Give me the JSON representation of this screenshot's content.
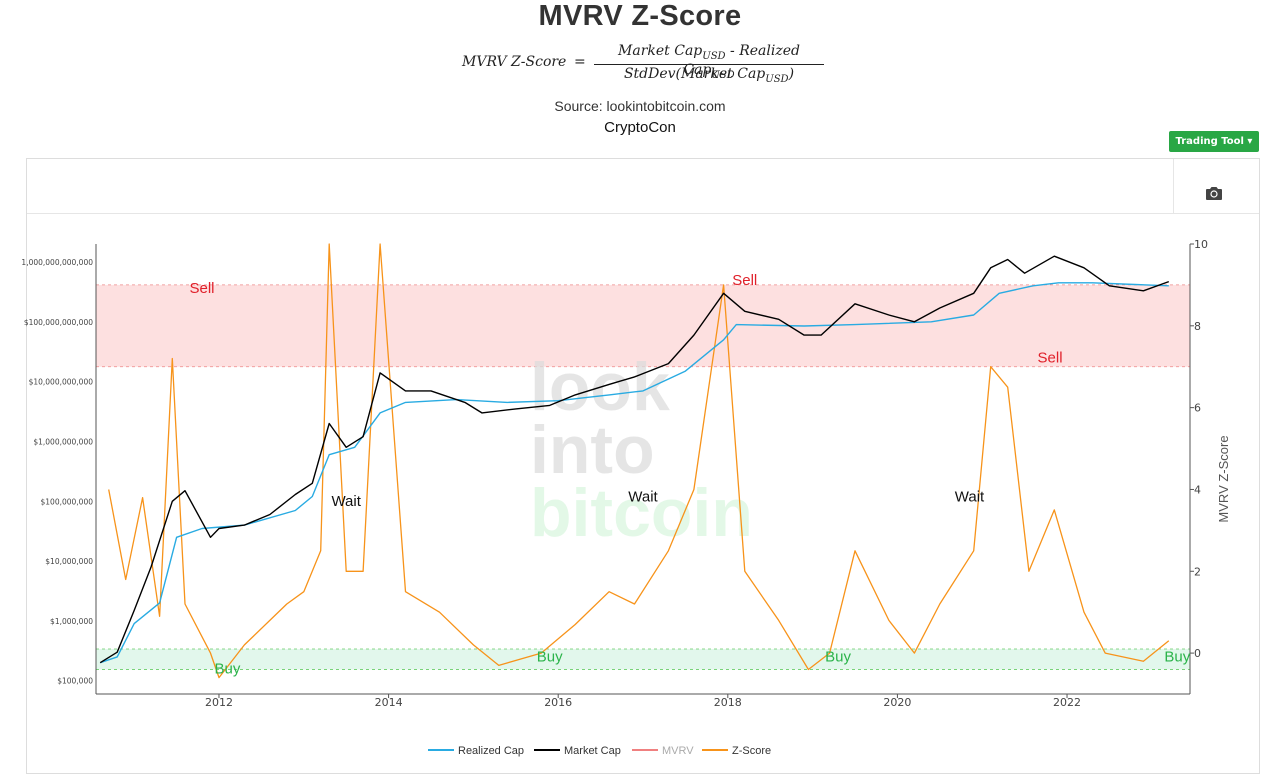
{
  "title": "MVRV Z-Score",
  "formula": {
    "lhs": "MVRV Z-Score",
    "equals": "=",
    "numerator_a": "Market Cap",
    "numerator_op": " - ",
    "numerator_b": "Realized Cap",
    "denominator_a": "StdDev(Market Cap",
    "denominator_close": ")",
    "subscript": "USD"
  },
  "source": "Source: lookintobitcoin.com",
  "author": "CryptoCon",
  "toolbar": {
    "trading_tool_label": "Trading Tool ▾",
    "camera_icon": "camera-icon"
  },
  "watermark": [
    "look",
    "into",
    "bitcoin"
  ],
  "colors": {
    "realized_cap": "#29abe2",
    "market_cap": "#000000",
    "mvrv": "#f08080",
    "zscore": "#f7931a",
    "sell_zone": "#fde0e0",
    "buy_zone": "#e2f7ec",
    "sell_text": "#e0202a",
    "buy_text": "#2bb34a",
    "button_bg": "#29a745"
  },
  "chart_data": {
    "type": "line",
    "title": "MVRV Z-Score",
    "xlabel": "",
    "ylabel_left": "",
    "ylabel_right": "MVRV Z-Score",
    "x_ticks": [
      "2012",
      "2014",
      "2016",
      "2018",
      "2020",
      "2022"
    ],
    "left_axis": {
      "scale": "log",
      "range": [
        60000,
        2000000000000
      ],
      "ticks": [
        {
          "value": 100000,
          "label": "$100,000"
        },
        {
          "value": 1000000,
          "label": "$1,000,000"
        },
        {
          "value": 10000000,
          "label": "$10,000,000"
        },
        {
          "value": 100000000,
          "label": "$100,000,000"
        },
        {
          "value": 1000000000,
          "label": "$1,000,000,000"
        },
        {
          "value": 10000000000,
          "label": "$10,000,000,000"
        },
        {
          "value": 100000000000,
          "label": "$100,000,000,000"
        },
        {
          "value": 1000000000000,
          "label": "1,000,000,000,000"
        }
      ]
    },
    "right_axis": {
      "scale": "linear",
      "range": [
        -1,
        10
      ],
      "ticks": [
        {
          "value": 0,
          "label": "0"
        },
        {
          "value": 2,
          "label": "2"
        },
        {
          "value": 4,
          "label": "4"
        },
        {
          "value": 6,
          "label": "6"
        },
        {
          "value": 8,
          "label": "8"
        },
        {
          "value": 10,
          "label": "10"
        }
      ]
    },
    "zones": [
      {
        "name": "sell",
        "zscore_from": 7,
        "zscore_to": 9
      },
      {
        "name": "buy",
        "zscore_from": -0.4,
        "zscore_to": 0.1
      }
    ],
    "legend_position": "bottom-center",
    "legend": [
      "Realized Cap",
      "Market Cap",
      "MVRV",
      "Z-Score"
    ],
    "series": [
      {
        "name": "Market Cap",
        "axis": "left",
        "points": [
          [
            2010.6,
            200000
          ],
          [
            2010.8,
            300000
          ],
          [
            2011.0,
            1500000
          ],
          [
            2011.2,
            8000000
          ],
          [
            2011.45,
            100000000
          ],
          [
            2011.6,
            150000000
          ],
          [
            2011.9,
            25000000
          ],
          [
            2012.0,
            35000000
          ],
          [
            2012.3,
            40000000
          ],
          [
            2012.6,
            60000000
          ],
          [
            2012.9,
            130000000
          ],
          [
            2013.1,
            200000000
          ],
          [
            2013.3,
            2000000000
          ],
          [
            2013.5,
            800000000
          ],
          [
            2013.7,
            1200000000
          ],
          [
            2013.9,
            14000000000
          ],
          [
            2014.2,
            7000000000
          ],
          [
            2014.5,
            7000000000
          ],
          [
            2014.9,
            4500000000
          ],
          [
            2015.1,
            3000000000
          ],
          [
            2015.5,
            3500000000
          ],
          [
            2015.9,
            4000000000
          ],
          [
            2016.2,
            6000000000
          ],
          [
            2016.6,
            9000000000
          ],
          [
            2016.9,
            12000000000
          ],
          [
            2017.3,
            20000000000
          ],
          [
            2017.6,
            60000000000
          ],
          [
            2017.95,
            300000000000
          ],
          [
            2018.2,
            150000000000
          ],
          [
            2018.6,
            110000000000
          ],
          [
            2018.9,
            60000000000
          ],
          [
            2019.1,
            60000000000
          ],
          [
            2019.5,
            200000000000
          ],
          [
            2019.9,
            130000000000
          ],
          [
            2020.2,
            100000000000
          ],
          [
            2020.5,
            170000000000
          ],
          [
            2020.9,
            300000000000
          ],
          [
            2021.1,
            800000000000
          ],
          [
            2021.3,
            1100000000000
          ],
          [
            2021.5,
            650000000000
          ],
          [
            2021.85,
            1250000000000
          ],
          [
            2022.2,
            800000000000
          ],
          [
            2022.5,
            400000000000
          ],
          [
            2022.9,
            330000000000
          ],
          [
            2023.2,
            470000000000
          ]
        ]
      },
      {
        "name": "Realized Cap",
        "axis": "left",
        "points": [
          [
            2010.6,
            200000
          ],
          [
            2010.8,
            250000
          ],
          [
            2011.0,
            900000
          ],
          [
            2011.3,
            2000000
          ],
          [
            2011.5,
            25000000
          ],
          [
            2011.8,
            35000000
          ],
          [
            2012.3,
            40000000
          ],
          [
            2012.9,
            70000000
          ],
          [
            2013.1,
            120000000
          ],
          [
            2013.3,
            600000000
          ],
          [
            2013.6,
            800000000
          ],
          [
            2013.9,
            3000000000
          ],
          [
            2014.2,
            4500000000
          ],
          [
            2014.8,
            5000000000
          ],
          [
            2015.4,
            4500000000
          ],
          [
            2016.0,
            4800000000
          ],
          [
            2016.6,
            6000000000
          ],
          [
            2017.0,
            7000000000
          ],
          [
            2017.5,
            15000000000
          ],
          [
            2017.95,
            50000000000
          ],
          [
            2018.1,
            90000000000
          ],
          [
            2018.9,
            85000000000
          ],
          [
            2019.5,
            90000000000
          ],
          [
            2020.4,
            100000000000
          ],
          [
            2020.9,
            130000000000
          ],
          [
            2021.2,
            300000000000
          ],
          [
            2021.6,
            400000000000
          ],
          [
            2021.9,
            450000000000
          ],
          [
            2022.3,
            450000000000
          ],
          [
            2022.8,
            420000000000
          ],
          [
            2023.2,
            400000000000
          ]
        ]
      },
      {
        "name": "Z-Score",
        "axis": "right",
        "points": [
          [
            2010.7,
            4.0
          ],
          [
            2010.9,
            1.8
          ],
          [
            2011.1,
            3.8
          ],
          [
            2011.3,
            0.9
          ],
          [
            2011.45,
            7.2
          ],
          [
            2011.6,
            1.2
          ],
          [
            2011.9,
            0.0
          ],
          [
            2012.0,
            -0.6
          ],
          [
            2012.3,
            0.2
          ],
          [
            2012.8,
            1.2
          ],
          [
            2013.0,
            1.5
          ],
          [
            2013.2,
            2.5
          ],
          [
            2013.3,
            10.0
          ],
          [
            2013.5,
            2.0
          ],
          [
            2013.7,
            2.0
          ],
          [
            2013.9,
            10.0
          ],
          [
            2014.2,
            1.5
          ],
          [
            2014.6,
            1.0
          ],
          [
            2015.0,
            0.2
          ],
          [
            2015.3,
            -0.3
          ],
          [
            2015.8,
            0.0
          ],
          [
            2016.2,
            0.7
          ],
          [
            2016.6,
            1.5
          ],
          [
            2016.9,
            1.2
          ],
          [
            2017.3,
            2.5
          ],
          [
            2017.6,
            4.0
          ],
          [
            2017.95,
            9.0
          ],
          [
            2018.2,
            2.0
          ],
          [
            2018.6,
            0.8
          ],
          [
            2018.95,
            -0.4
          ],
          [
            2019.2,
            0.0
          ],
          [
            2019.5,
            2.5
          ],
          [
            2019.9,
            0.8
          ],
          [
            2020.2,
            0.0
          ],
          [
            2020.5,
            1.2
          ],
          [
            2020.9,
            2.5
          ],
          [
            2021.1,
            7.0
          ],
          [
            2021.3,
            6.5
          ],
          [
            2021.55,
            2.0
          ],
          [
            2021.85,
            3.5
          ],
          [
            2022.2,
            1.0
          ],
          [
            2022.45,
            0.0
          ],
          [
            2022.9,
            -0.2
          ],
          [
            2023.2,
            0.3
          ]
        ]
      }
    ],
    "annotations": [
      {
        "text": "Sell",
        "kind": "sell",
        "x": 2011.8,
        "z": 8.8
      },
      {
        "text": "Sell",
        "kind": "sell",
        "x": 2018.2,
        "z": 9.0
      },
      {
        "text": "Sell",
        "kind": "sell",
        "x": 2021.8,
        "z": 7.1
      },
      {
        "text": "Wait",
        "kind": "wait",
        "x": 2013.5,
        "z": 3.6
      },
      {
        "text": "Wait",
        "kind": "wait",
        "x": 2017.0,
        "z": 3.7
      },
      {
        "text": "Wait",
        "kind": "wait",
        "x": 2020.85,
        "z": 3.7
      },
      {
        "text": "Buy",
        "kind": "buy",
        "x": 2012.1,
        "z": -0.5
      },
      {
        "text": "Buy",
        "kind": "buy",
        "x": 2015.9,
        "z": -0.2
      },
      {
        "text": "Buy",
        "kind": "buy",
        "x": 2019.3,
        "z": -0.2
      },
      {
        "text": "Buy",
        "kind": "buy",
        "x": 2023.3,
        "z": -0.2
      }
    ]
  }
}
